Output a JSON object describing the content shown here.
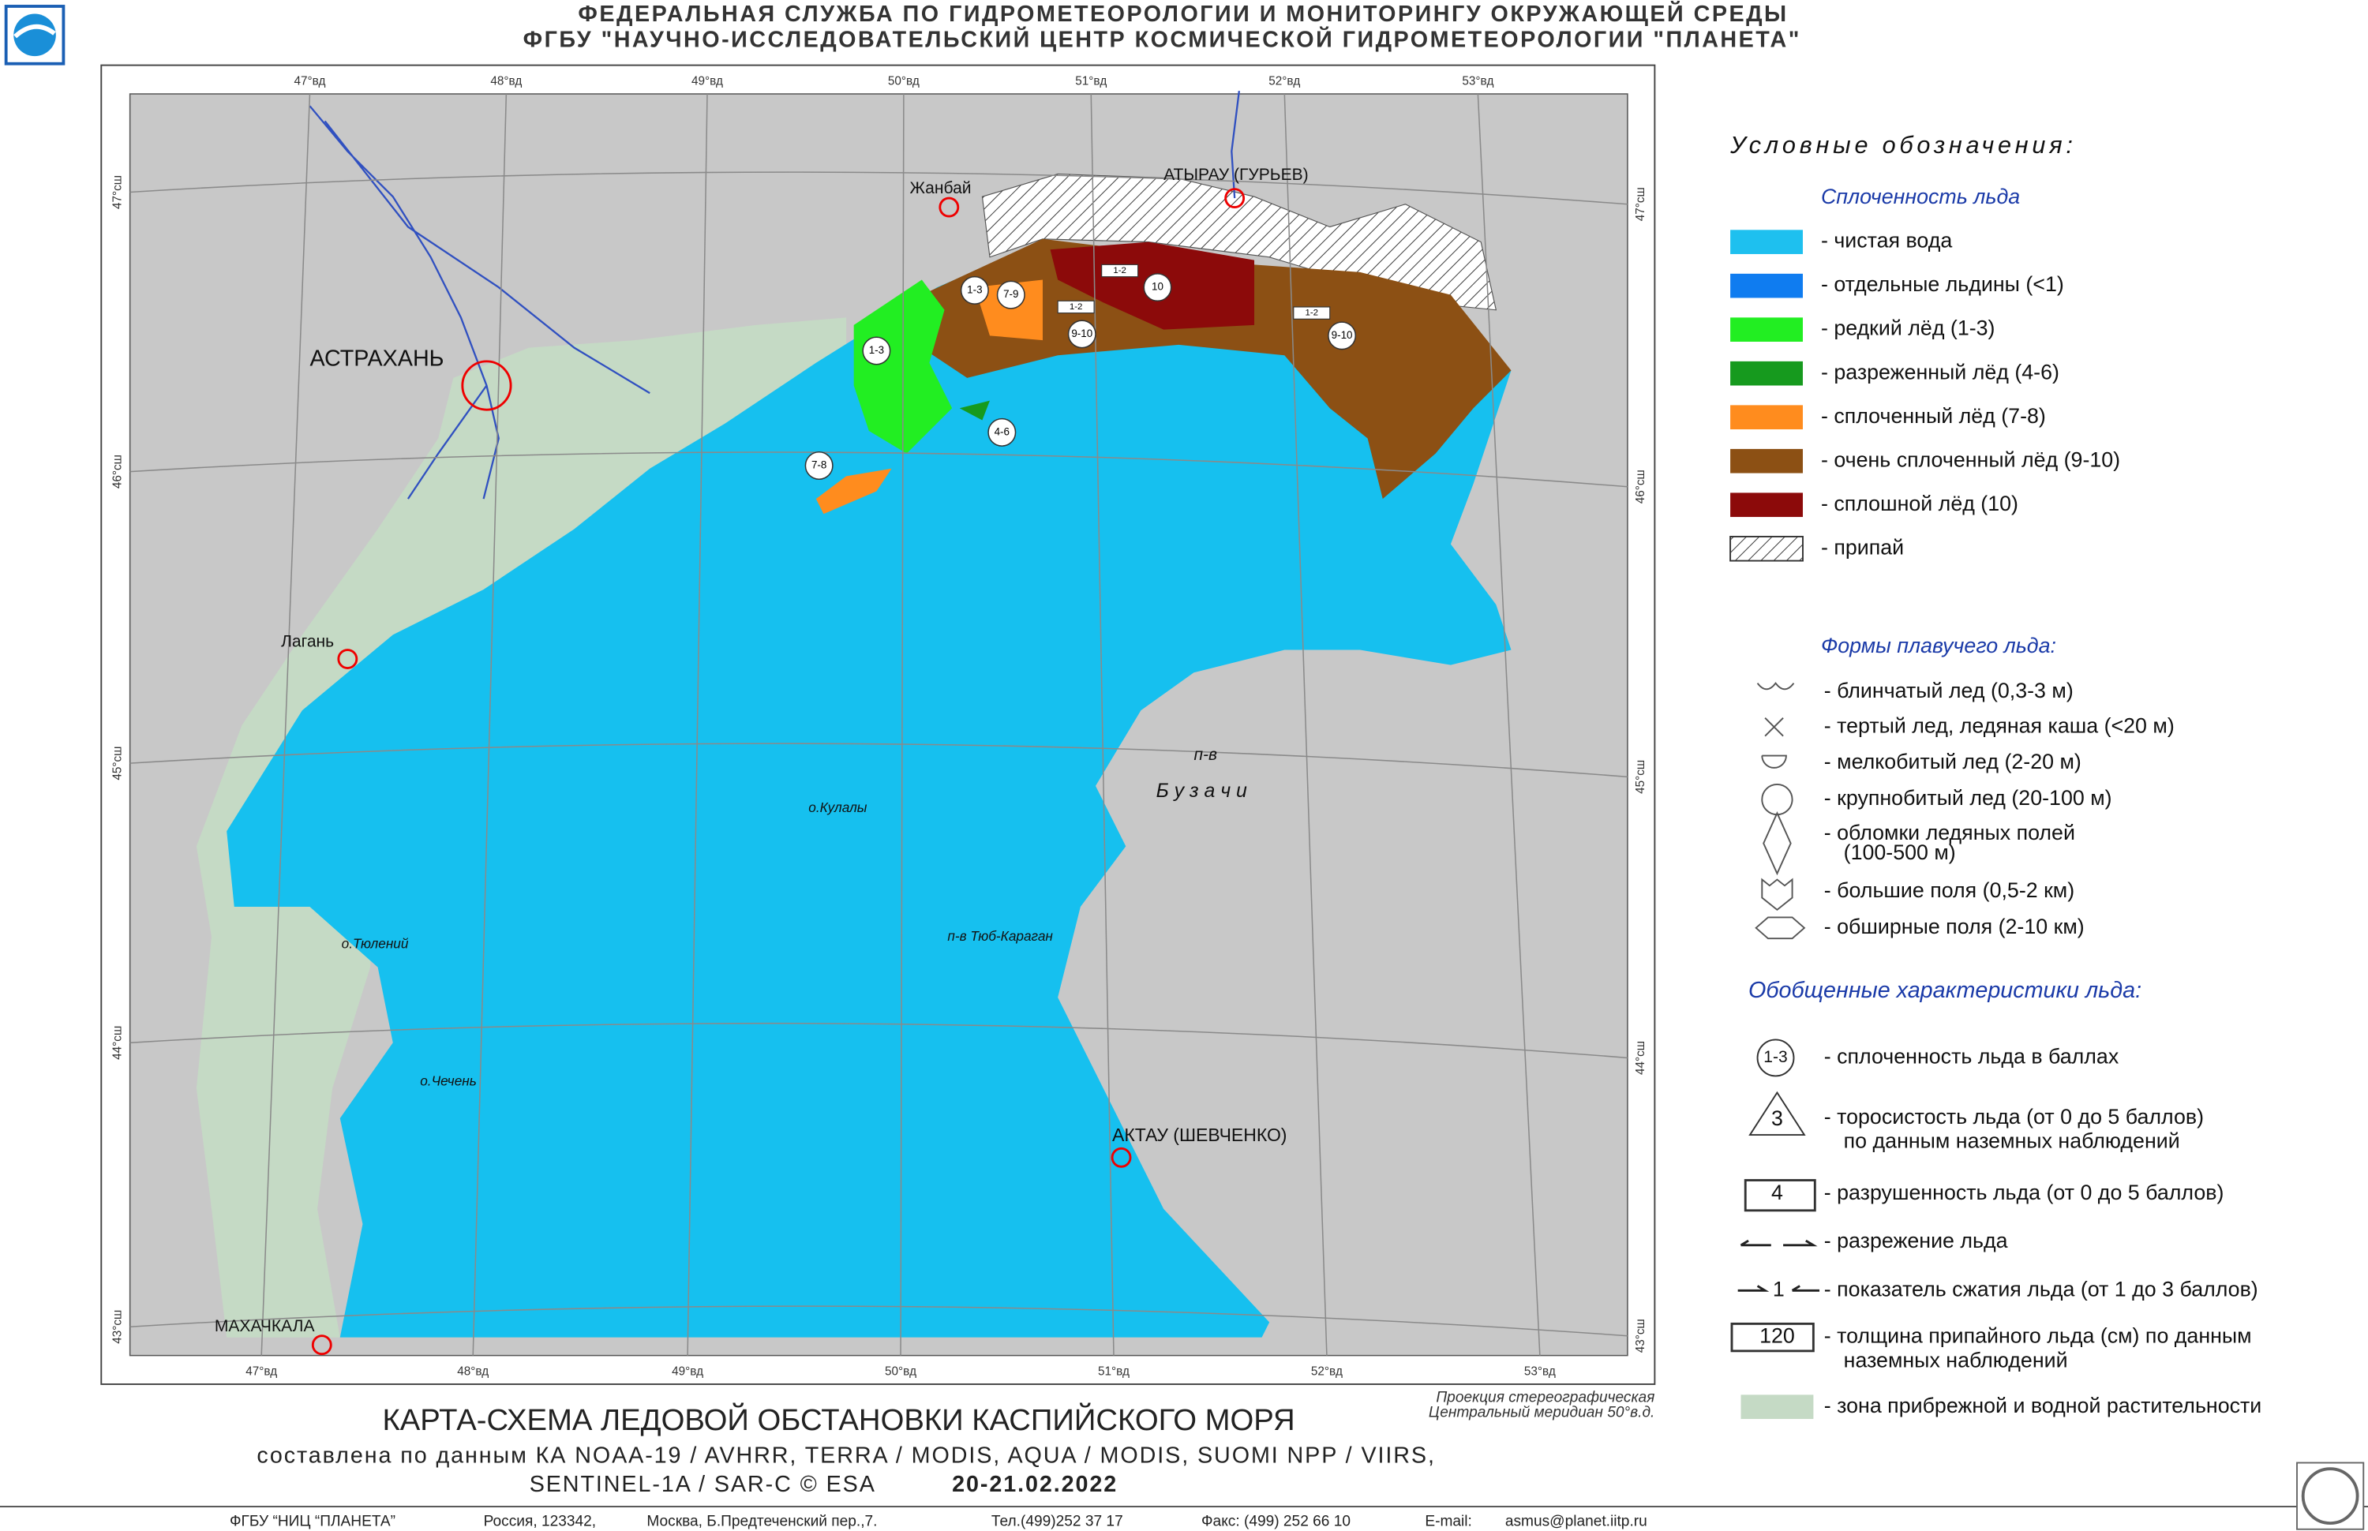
{
  "header": {
    "line1": "ФЕДЕРАЛЬНАЯ СЛУЖБА ПО ГИДРОМЕТЕОРОЛОГИИ И МОНИТОРИНГУ ОКРУЖАЮЩЕЙ СРЕДЫ",
    "line2": "ФГБУ \"НАУЧНО-ИССЛЕДОВАТЕЛЬСКИЙ ЦЕНТР КОСМИЧЕСКОЙ ГИДРОМЕТЕОРОЛОГИИ \"ПЛАНЕТА\""
  },
  "map": {
    "longitudes": [
      "47°вд",
      "48°вд",
      "49°вд",
      "50°вд",
      "51°вд",
      "52°вд",
      "53°вд"
    ],
    "latitudes": [
      "47°сш",
      "46°сш",
      "45°сш",
      "44°сш",
      "43°сш"
    ],
    "places": [
      "АСТРАХАНЬ",
      "Жанбай",
      "АТЫРАУ (ГУРЬЕВ)",
      "Лагань",
      "МАХАЧКАЛА",
      "АКТАУ (ШЕВЧЕНКО)",
      "о.Кулалы",
      "о.Тюлений",
      "о.Чечень",
      "п-в",
      "Б у з а ч и",
      "п-в Тюб-Караган"
    ],
    "ice_labels": [
      "1-3",
      "1-3",
      "7-9",
      "10",
      "1-2",
      "1-2",
      "9-10",
      "1-2",
      "9-10",
      "4-6",
      "7-8"
    ],
    "projection": [
      "Проекция стереографическая",
      "Центральный меридиан 50°в.д."
    ]
  },
  "legend": {
    "title": "Условные    обозначения:",
    "concentration": {
      "title": "Сплоченность льда",
      "items": [
        {
          "text": "-  чистая вода",
          "color": "#1ec0ef"
        },
        {
          "text": "-  отдельные льдины (<1)",
          "color": "#0f7cf0"
        },
        {
          "text": "-  редкий лёд (1-3)",
          "color": "#22ee22"
        },
        {
          "text": "-  разреженный лёд (4-6)",
          "color": "#169a1e"
        },
        {
          "text": "-  сплоченный лёд (7-8)",
          "color": "#ff8c1e"
        },
        {
          "text": "-  очень сплоченный лёд (9-10)",
          "color": "#8c5014"
        },
        {
          "text": "- сплошной лёд (10)",
          "color": "#8c0a0a"
        },
        {
          "text": "-  припай",
          "color": "#ffffff"
        }
      ]
    },
    "forms": {
      "title": "Формы плавучего льда:",
      "items": [
        "-  блинчатый лед (0,3-3 м)",
        "-  тертый лед, ледяная каша (<20 м)",
        "-  мелкобитый лед (2-20 м)",
        "-  крупнобитый лед (20-100 м)",
        "-  обломки ледяных полей",
        "(100-500 м)",
        "-  большие поля (0,5-2 км)",
        "-  обширные поля (2-10 км)"
      ]
    },
    "general": {
      "title": "Обобщенные характеристики льда:",
      "items": [
        {
          "symbol": "1-3",
          "text": [
            "-  сплоченность льда в баллах"
          ]
        },
        {
          "symbol": "3",
          "text": [
            "-  торосистость льда (от 0 до 5 баллов)",
            "по данным наземных наблюдений"
          ]
        },
        {
          "symbol": "4",
          "text": [
            "-  разрушенность льда (от 0 до 5 баллов)"
          ]
        },
        {
          "text": [
            "-  разрежение льда"
          ]
        },
        {
          "symbol": "1",
          "text": [
            "-  показатель сжатия льда (от 1 до 3 баллов)"
          ]
        },
        {
          "symbol": "120",
          "text": [
            "-  толщина припайного льда (см) по данным",
            "наземных наблюдений"
          ]
        },
        {
          "text": [
            "-  зона прибрежной и водной растительности"
          ]
        }
      ]
    }
  },
  "title": {
    "main": "КАРТА-СХЕМА ЛЕДОВОЙ ОБСТАНОВКИ КАСПИЙСКОГО МОРЯ",
    "line2": "составлена по данным КА NOAA-19 / AVHRR, TERRA / MODIS, AQUA / MODIS, SUOMI NPP / VIIRS,",
    "line3": "SENTINEL-1A / SAR-C © ESA",
    "date": "20-21.02.2022"
  },
  "footer": [
    "ФГБУ “НИЦ “ПЛАНЕТА”",
    "Россия, 123342,",
    "Москва, Б.Предтеченский пер.,7.",
    "Тел.(499)252 37 17",
    "Факс: (499) 252 66 10",
    "E-mail:",
    "asmus@planet.iitp.ru"
  ]
}
